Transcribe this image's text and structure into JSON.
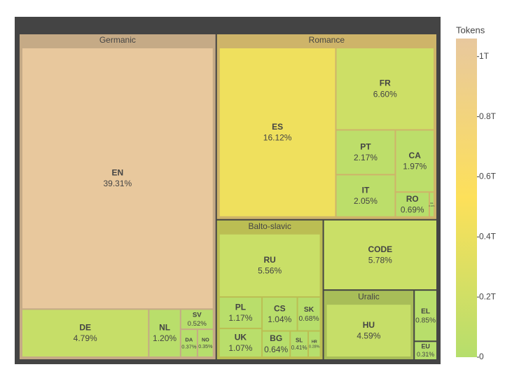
{
  "chart_data": {
    "type": "treemap",
    "nodes": [
      {
        "label": "Germanic",
        "children": [
          {
            "label": "EN",
            "value": 39.31,
            "value_label": "39.31%",
            "tokens": 1050000000000.0
          },
          {
            "label": "DE",
            "value": 4.79,
            "value_label": "4.79%",
            "tokens": 128000000000.0
          },
          {
            "label": "NL",
            "value": 1.2,
            "value_label": "1.20%",
            "tokens": 32000000000.0
          },
          {
            "label": "SV",
            "value": 0.52,
            "value_label": "0.52%",
            "tokens": 14000000000.0
          },
          {
            "label": "DA",
            "value": 0.37,
            "value_label": "0.37%",
            "tokens": 10000000000.0
          },
          {
            "label": "NO",
            "value": 0.35,
            "value_label": "0.35%",
            "tokens": 9000000000.0
          }
        ]
      },
      {
        "label": "Romance",
        "children": [
          {
            "label": "ES",
            "value": 16.12,
            "value_label": "16.12%",
            "tokens": 430000000000.0
          },
          {
            "label": "FR",
            "value": 6.6,
            "value_label": "6.60%",
            "tokens": 176000000000.0
          },
          {
            "label": "PT",
            "value": 2.17,
            "value_label": "2.17%",
            "tokens": 58000000000.0
          },
          {
            "label": "IT",
            "value": 2.05,
            "value_label": "2.05%",
            "tokens": 55000000000.0
          },
          {
            "label": "CA",
            "value": 1.97,
            "value_label": "1.97%",
            "tokens": 53000000000.0
          },
          {
            "label": "RO",
            "value": 0.69,
            "value_label": "0.69%",
            "tokens": 18000000000.0
          },
          {
            "label": "GL",
            "value": 0.1,
            "value_label": "0.10%",
            "tokens": 3000000000.0
          }
        ]
      },
      {
        "label": "Balto-slavic",
        "children": [
          {
            "label": "RU",
            "value": 5.56,
            "value_label": "5.56%",
            "tokens": 148000000000.0
          },
          {
            "label": "PL",
            "value": 1.17,
            "value_label": "1.17%",
            "tokens": 31000000000.0
          },
          {
            "label": "UK",
            "value": 1.07,
            "value_label": "1.07%",
            "tokens": 29000000000.0
          },
          {
            "label": "CS",
            "value": 1.04,
            "value_label": "1.04%",
            "tokens": 28000000000.0
          },
          {
            "label": "SK",
            "value": 0.68,
            "value_label": "0.68%",
            "tokens": 18000000000.0
          },
          {
            "label": "BG",
            "value": 0.64,
            "value_label": "0.64%",
            "tokens": 17000000000.0
          },
          {
            "label": "SL",
            "value": 0.41,
            "value_label": "0.41%",
            "tokens": 11000000000.0
          },
          {
            "label": "HR",
            "value": 0.28,
            "value_label": "0.28%",
            "tokens": 7000000000.0
          }
        ]
      },
      {
        "label": "CODE",
        "value": 5.78,
        "value_label": "5.78%",
        "tokens": 154000000000.0
      },
      {
        "label": "Uralic",
        "children": [
          {
            "label": "HU",
            "value": 4.59,
            "value_label": "4.59%",
            "tokens": 123000000000.0
          }
        ]
      },
      {
        "label": "EL",
        "value": 0.85,
        "value_label": "0.85%",
        "tokens": 23000000000.0
      },
      {
        "label": "EU",
        "value": 0.31,
        "value_label": "0.31%",
        "tokens": 8000000000.0
      }
    ],
    "colorscale": [
      "#b5de6c",
      "#fde05a",
      "#e8c89e"
    ],
    "colorbar": {
      "title": "Tokens",
      "lim": [
        0,
        1060000000000.0
      ],
      "ticks": [
        {
          "value": 0,
          "label": "0"
        },
        {
          "value": 200000000000.0,
          "label": "0.2T"
        },
        {
          "value": 400000000000.0,
          "label": "0.4T"
        },
        {
          "value": 600000000000.0,
          "label": "0.6T"
        },
        {
          "value": 800000000000.0,
          "label": "0.8T"
        },
        {
          "value": 1000000000000.0,
          "label": "1T"
        }
      ]
    }
  }
}
